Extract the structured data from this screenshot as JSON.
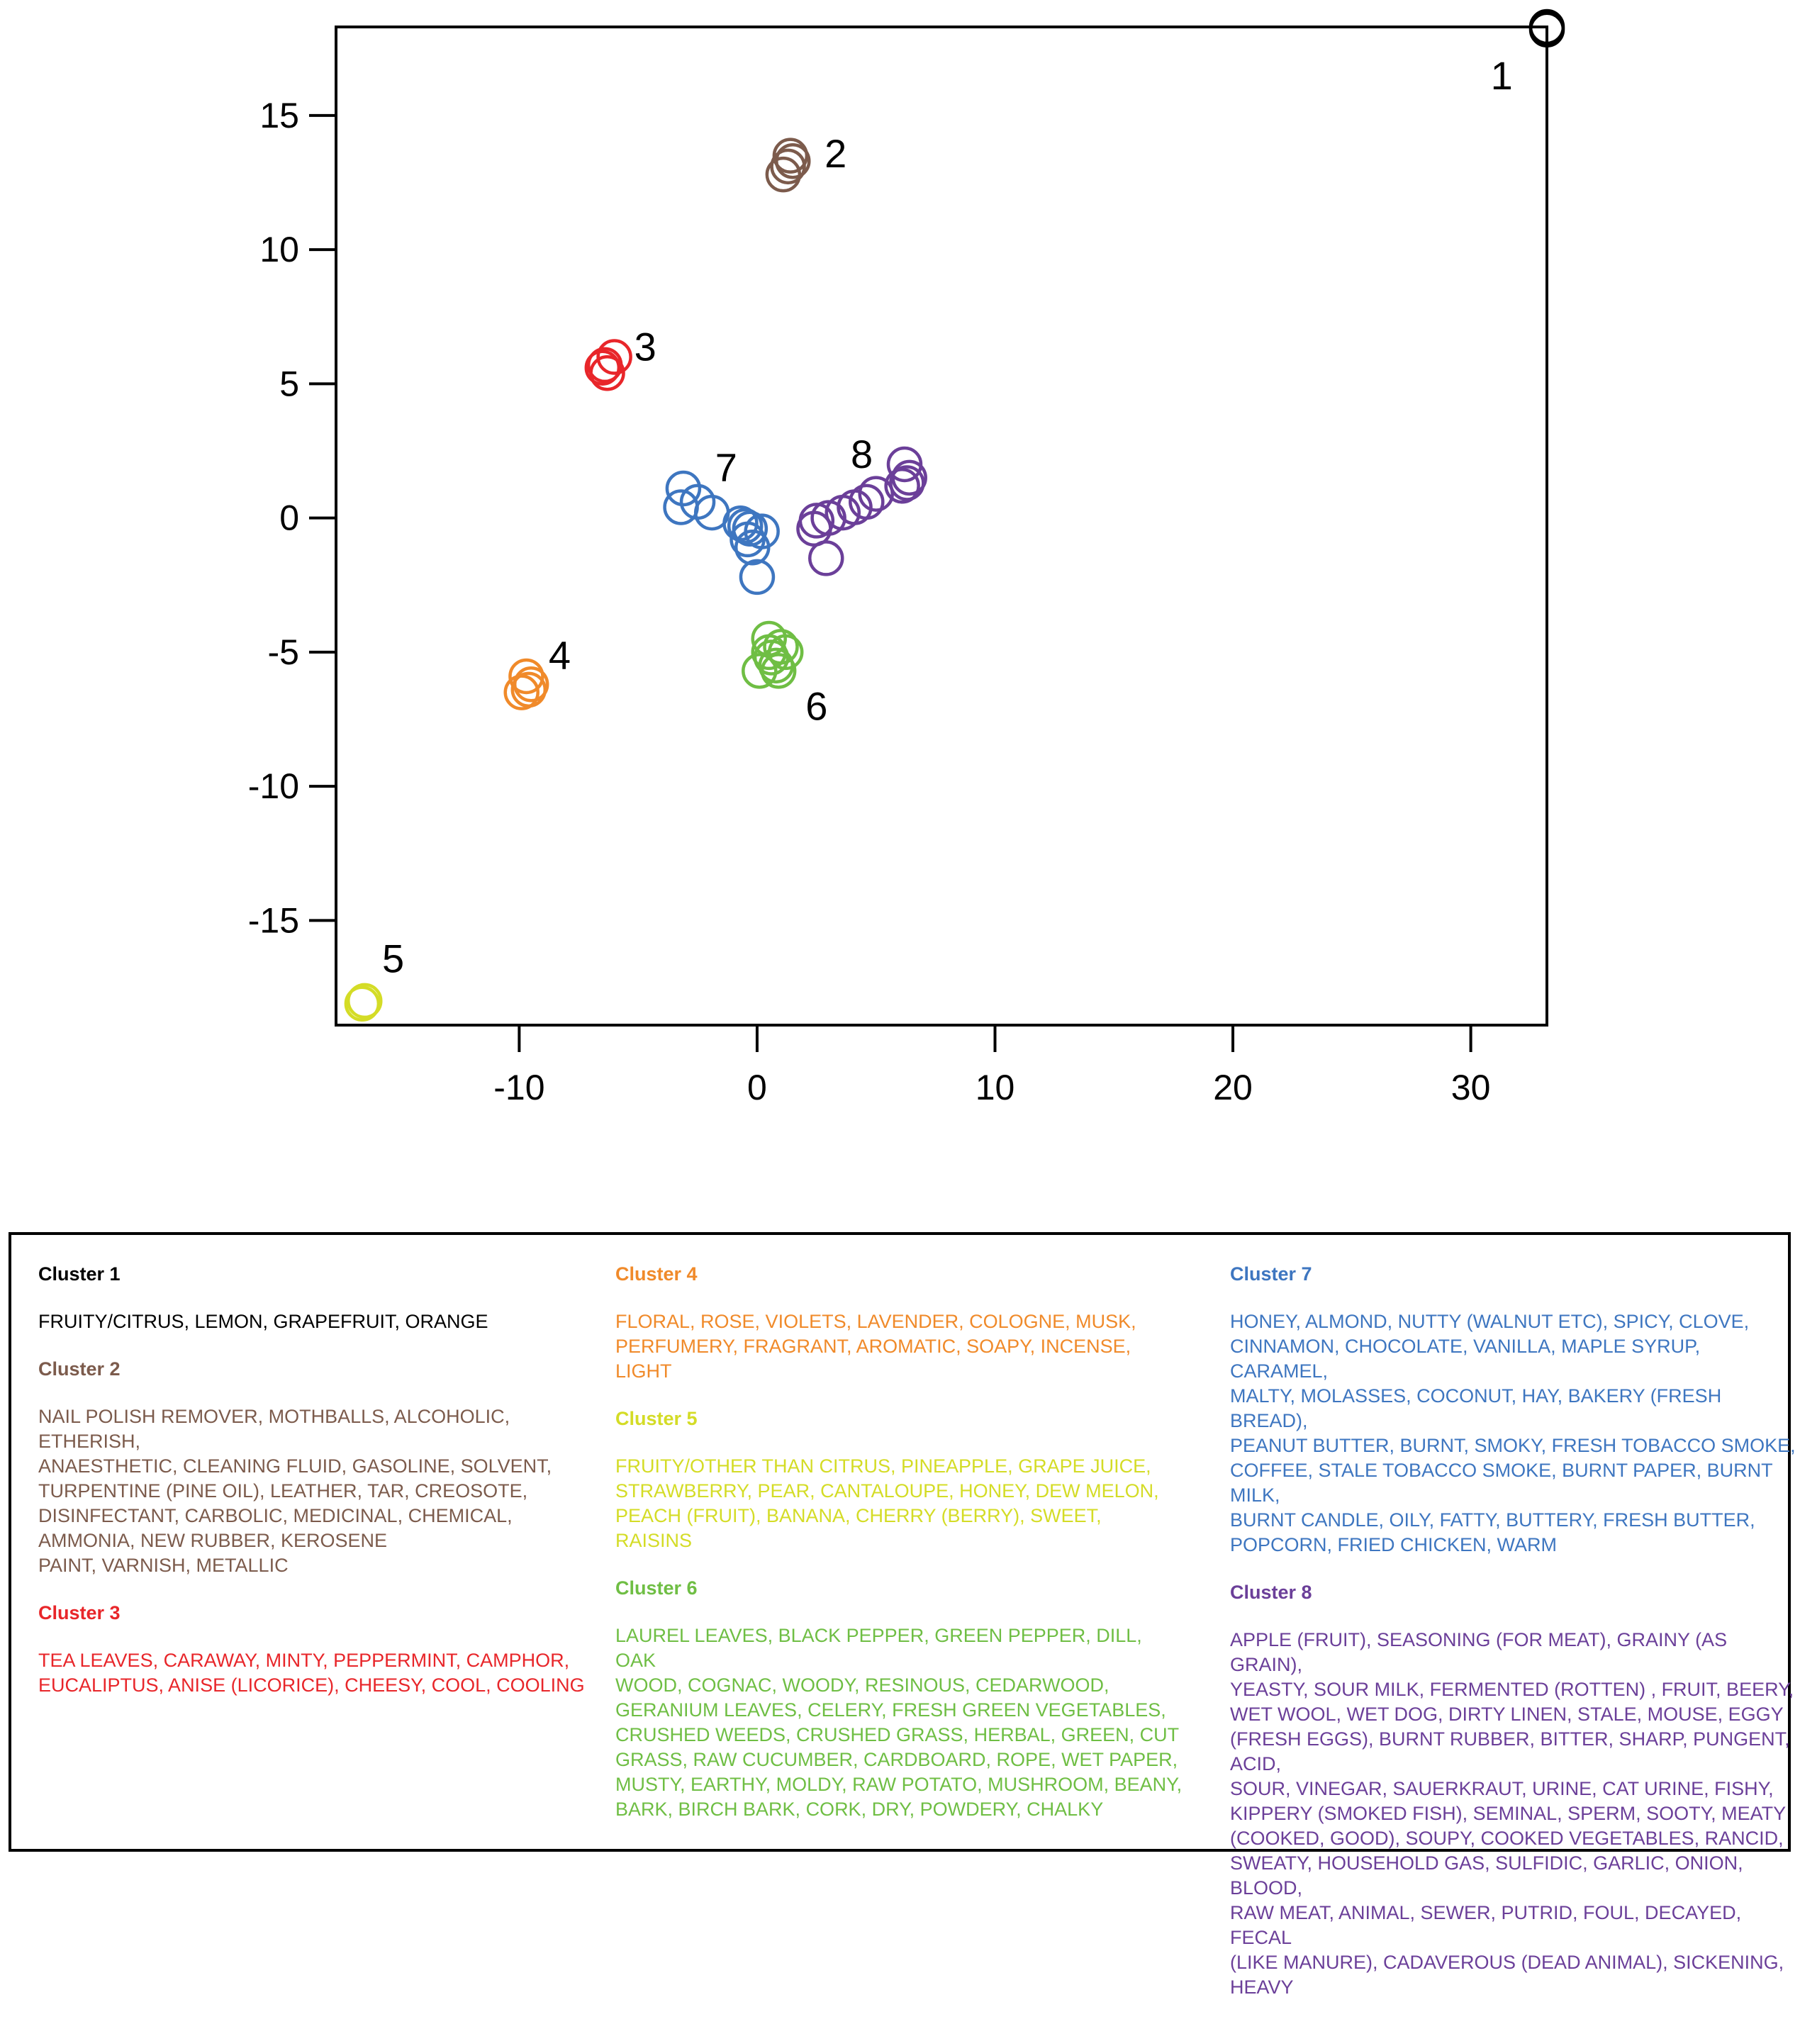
{
  "chart_data": {
    "type": "scatter",
    "title": "",
    "xlabel": "",
    "ylabel": "",
    "xlim": [
      -17.7,
      33.2
    ],
    "ylim": [
      -18.9,
      18.3
    ],
    "x_ticks": [
      -10,
      0,
      10,
      20,
      30
    ],
    "y_ticks": [
      -15,
      -10,
      -5,
      0,
      5,
      10,
      15
    ],
    "grid": false,
    "series": [
      {
        "cluster": "1",
        "color": "#000000",
        "points": [
          [
            33.2,
            18.3
          ],
          [
            33.2,
            18.2
          ]
        ]
      },
      {
        "cluster": "2",
        "color": "#7c5b4c",
        "points": [
          [
            1.4,
            13.5
          ],
          [
            1.5,
            13.3
          ],
          [
            1.3,
            13.1
          ],
          [
            1.1,
            12.8
          ]
        ]
      },
      {
        "cluster": "3",
        "color": "#e8262a",
        "points": [
          [
            -6.0,
            6.0
          ],
          [
            -6.5,
            5.6
          ],
          [
            -6.3,
            5.4
          ],
          [
            -6.4,
            5.7
          ]
        ]
      },
      {
        "cluster": "4",
        "color": "#f08a2a",
        "points": [
          [
            -9.7,
            -5.9
          ],
          [
            -9.6,
            -6.4
          ],
          [
            -9.9,
            -6.5
          ],
          [
            -9.5,
            -6.2
          ]
        ]
      },
      {
        "cluster": "5",
        "color": "#d4dc26",
        "points": [
          [
            -16.5,
            -18.0
          ],
          [
            -16.6,
            -18.1
          ]
        ]
      },
      {
        "cluster": "6",
        "color": "#6fbe44",
        "points": [
          [
            0.5,
            -4.5
          ],
          [
            1.0,
            -4.8
          ],
          [
            1.2,
            -5.0
          ],
          [
            0.6,
            -5.2
          ],
          [
            0.8,
            -5.5
          ],
          [
            0.9,
            -5.7
          ],
          [
            0.1,
            -5.7
          ],
          [
            0.5,
            -5.0
          ]
        ]
      },
      {
        "cluster": "7",
        "color": "#3e76c0",
        "points": [
          [
            -3.1,
            1.1
          ],
          [
            -3.2,
            0.4
          ],
          [
            -2.5,
            0.6
          ],
          [
            -1.9,
            0.2
          ],
          [
            -0.7,
            -0.2
          ],
          [
            -0.3,
            -0.4
          ],
          [
            0.2,
            -0.5
          ],
          [
            -0.4,
            -0.8
          ],
          [
            -0.2,
            -1.1
          ],
          [
            0.0,
            -2.2
          ],
          [
            -0.5,
            -0.3
          ]
        ]
      },
      {
        "cluster": "8",
        "color": "#6b3f99",
        "points": [
          [
            6.2,
            2.0
          ],
          [
            6.4,
            1.5
          ],
          [
            6.3,
            1.3
          ],
          [
            6.1,
            1.2
          ],
          [
            5.0,
            0.9
          ],
          [
            4.6,
            0.6
          ],
          [
            4.1,
            0.4
          ],
          [
            3.6,
            0.2
          ],
          [
            3.0,
            0.0
          ],
          [
            2.5,
            -0.1
          ],
          [
            2.4,
            -0.4
          ],
          [
            2.9,
            -1.5
          ]
        ]
      }
    ],
    "annotations": [
      {
        "text": "1",
        "x": 31.3,
        "y": 16.5
      },
      {
        "text": "2",
        "x": 3.3,
        "y": 13.6
      },
      {
        "text": "3",
        "x": -4.7,
        "y": 6.4
      },
      {
        "text": "4",
        "x": -8.3,
        "y": -5.1
      },
      {
        "text": "5",
        "x": -15.3,
        "y": -16.4
      },
      {
        "text": "6",
        "x": 2.5,
        "y": -7.0
      },
      {
        "text": "7",
        "x": -1.3,
        "y": 1.9
      },
      {
        "text": "8",
        "x": 4.4,
        "y": 2.4
      }
    ]
  },
  "legend": {
    "column1": [
      {
        "title": "Cluster 1",
        "color": "#000000",
        "text": "FRUITY/CITRUS, LEMON, GRAPEFRUIT, ORANGE"
      },
      {
        "title": "Cluster 2",
        "color": "#7c5b4c",
        "text": "NAIL POLISH REMOVER, MOTHBALLS, ALCOHOLIC, ETHERISH,\nANAESTHETIC, CLEANING FLUID, GASOLINE, SOLVENT,\nTURPENTINE (PINE OIL), LEATHER, TAR, CREOSOTE,\nDISINFECTANT, CARBOLIC, MEDICINAL, CHEMICAL,\nAMMONIA, NEW RUBBER, KEROSENE\nPAINT, VARNISH, METALLIC"
      },
      {
        "title": "Cluster 3",
        "color": "#e8262a",
        "text": "TEA LEAVES, CARAWAY, MINTY,   PEPPERMINT, CAMPHOR,\nEUCALIPTUS, ANISE (LICORICE), CHEESY, COOL, COOLING"
      }
    ],
    "column2": [
      {
        "title": "Cluster 4",
        "color": "#f08a2a",
        "text": "FLORAL, ROSE, VIOLETS, LAVENDER, COLOGNE, MUSK,\nPERFUMERY, FRAGRANT, AROMATIC, SOAPY, INCENSE, LIGHT"
      },
      {
        "title": "Cluster 5",
        "color": "#d4dc26",
        "text": "FRUITY/OTHER THAN CITRUS, PINEAPPLE, GRAPE JUICE,\nSTRAWBERRY, PEAR, CANTALOUPE,   HONEY, DEW MELON,\nPEACH  (FRUIT), BANANA, CHERRY  (BERRY), SWEET, RAISINS"
      },
      {
        "title": "Cluster 6",
        "color": "#6fbe44",
        "text": "LAUREL  LEAVES, BLACK PEPPER, GREEN PEPPER, DILL, OAK\nWOOD,   COGNAC, WOODY,   RESINOUS, CEDARWOOD,\nGERANIUM LEAVES, CELERY, FRESH GREEN VEGETABLES,\nCRUSHED WEEDS, CRUSHED GRASS, HERBAL, GREEN, CUT\nGRASS, RAW CUCUMBER, CARDBOARD, ROPE, WET PAPER,\nMUSTY, EARTHY, MOLDY, RAW POTATO, MUSHROOM, BEANY,\nBARK,   BIRCH BARK, CORK, DRY, POWDERY, CHALKY"
      }
    ],
    "column3": [
      {
        "title": "Cluster 7",
        "color": "#3e76c0",
        "text": "HONEY, ALMOND, NUTTY  (WALNUT ETC), SPICY, CLOVE,\nCINNAMON, CHOCOLATE, VANILLA, MAPLE  SYRUP, CARAMEL,\nMALTY, MOLASSES, COCONUT, HAY, BAKERY (FRESH BREAD),\nPEANUT BUTTER, BURNT, SMOKY, FRESH TOBACCO SMOKE,\nCOFFEE, STALE TOBACCO SMOKE, BURNT PAPER, BURNT MILK,\nBURNT CANDLE, OILY, FATTY, BUTTERY, FRESH BUTTER,\nPOPCORN, FRIED CHICKEN, WARM"
      },
      {
        "title": "Cluster 8",
        "color": "#6b3f99",
        "text": "APPLE (FRUIT), SEASONING  (FOR MEAT), GRAINY  (AS GRAIN),\nYEASTY, SOUR MILK, FERMENTED  (ROTTEN)  , FRUIT, BEERY,\nWET WOOL,  WET DOG, DIRTY LINEN, STALE, MOUSE, EGGY\n(FRESH EGGS), BURNT RUBBER, BITTER, SHARP, PUNGENT, ACID,\nSOUR, VINEGAR, SAUERKRAUT, URINE, CAT URINE, FISHY,\nKIPPERY (SMOKED FISH), SEMINAL, SPERM, SOOTY, MEATY\n(COOKED, GOOD), SOUPY, COOKED VEGETABLES, RANCID,\nSWEATY, HOUSEHOLD GAS, SULFIDIC, GARLIC, ONION, BLOOD,\nRAW MEAT, ANIMAL, SEWER, PUTRID, FOUL, DECAYED, FECAL\n(LIKE MANURE), CADAVEROUS (DEAD ANIMAL), SICKENING,\nHEAVY"
      }
    ]
  }
}
